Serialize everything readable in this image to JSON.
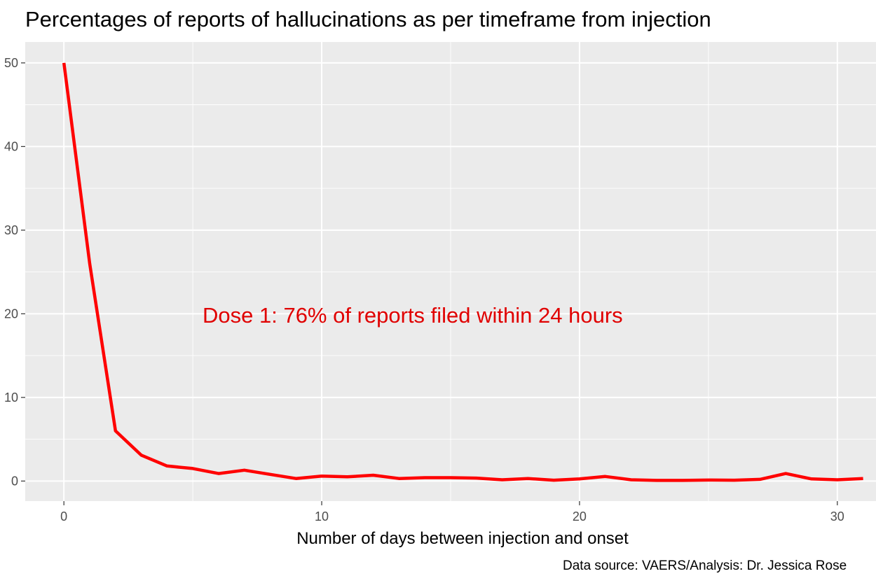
{
  "chart_data": {
    "type": "line",
    "title": "Percentages of reports of hallucinations as per timeframe from injection",
    "xlabel": "Number of days between injection and onset",
    "ylabel": "",
    "caption": "Data source: VAERS/Analysis: Dr. Jessica Rose",
    "annotation": "Dose 1: 76% of reports filed within 24 hours",
    "x_ticks": [
      "0",
      "10",
      "20",
      "30"
    ],
    "y_ticks": [
      "0",
      "10",
      "20",
      "30",
      "40",
      "50"
    ],
    "xlim": [
      -1.5,
      31.5
    ],
    "ylim": [
      -2.4,
      52.5
    ],
    "grid": true,
    "legend": "none",
    "colors": {
      "line": "#ff0000",
      "annotation": "#e00000",
      "panel": "#ebebeb",
      "grid_major": "#ffffff"
    },
    "series": [
      {
        "x": [
          0,
          1,
          2,
          3,
          4,
          5,
          6,
          7,
          8,
          9,
          10,
          11,
          12,
          13,
          14,
          15,
          16,
          17,
          18,
          19,
          20,
          21,
          22,
          23,
          24,
          25,
          26,
          27,
          28,
          29,
          30,
          31
        ],
        "values": [
          50,
          26,
          6,
          3.1,
          1.8,
          1.5,
          0.9,
          1.3,
          0.8,
          0.3,
          0.6,
          0.5,
          0.7,
          0.3,
          0.4,
          0.4,
          0.35,
          0.15,
          0.3,
          0.1,
          0.25,
          0.55,
          0.15,
          0.08,
          0.08,
          0.12,
          0.1,
          0.2,
          0.9,
          0.25,
          0.15,
          0.3
        ]
      }
    ]
  }
}
